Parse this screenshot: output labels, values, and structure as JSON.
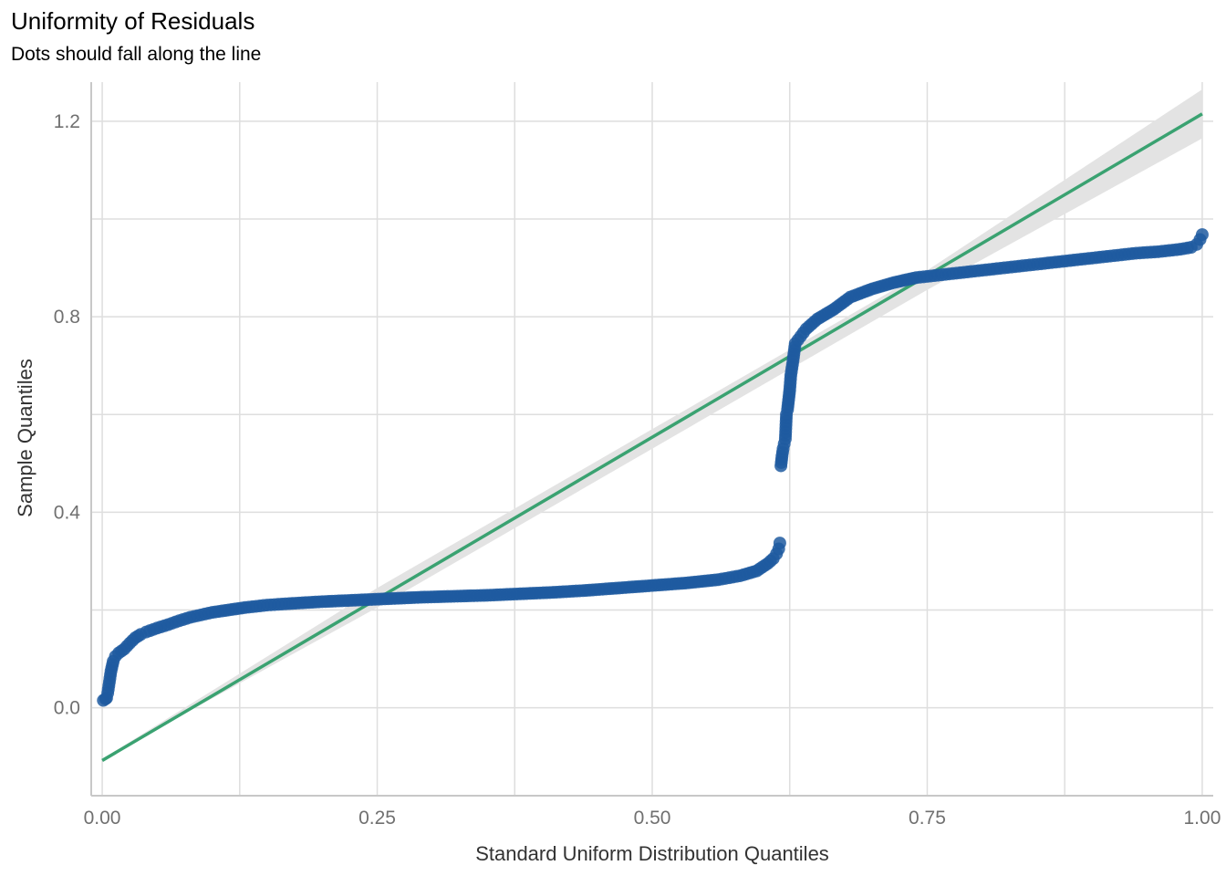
{
  "chart_data": {
    "type": "scatter",
    "title": "Uniformity of Residuals",
    "subtitle": "Dots should fall along the line",
    "xlabel": "Standard Uniform Distribution Quantiles",
    "ylabel": "Sample Quantiles",
    "xlim": [
      -0.01,
      1.01
    ],
    "ylim": [
      -0.18,
      1.28
    ],
    "x_ticks": [
      0.0,
      0.25,
      0.5,
      0.75,
      1.0
    ],
    "x_tick_labels": [
      "0.00",
      "0.25",
      "0.50",
      "0.75",
      "1.00"
    ],
    "y_ticks": [
      0.0,
      0.4,
      0.8,
      1.2
    ],
    "y_tick_labels": [
      "0.0",
      "0.4",
      "0.8",
      "1.2"
    ],
    "grid": true,
    "colors": {
      "points": "#1f5aa0",
      "line": "#3aa271",
      "band": "#e3e3e3",
      "grid": "#dedede",
      "axis_text": "#707070"
    },
    "reference_line": {
      "x": [
        0.0,
        1.0
      ],
      "y": [
        -0.108,
        1.215
      ]
    },
    "confidence_band": {
      "x": [
        0.0,
        0.25,
        0.5,
        0.75,
        1.0
      ],
      "lower": [
        -0.105,
        0.205,
        0.53,
        0.855,
        1.165
      ],
      "upper": [
        -0.105,
        0.245,
        0.57,
        0.895,
        1.265
      ]
    },
    "points": {
      "x": [
        0.001,
        0.003,
        0.004,
        0.005,
        0.006,
        0.007,
        0.008,
        0.01,
        0.012,
        0.015,
        0.02,
        0.025,
        0.03,
        0.035,
        0.04,
        0.05,
        0.06,
        0.07,
        0.08,
        0.09,
        0.1,
        0.115,
        0.13,
        0.15,
        0.17,
        0.2,
        0.23,
        0.26,
        0.29,
        0.32,
        0.35,
        0.38,
        0.41,
        0.44,
        0.47,
        0.5,
        0.53,
        0.56,
        0.58,
        0.595,
        0.605,
        0.61,
        0.613,
        0.615,
        0.616,
        0.617,
        0.618,
        0.619,
        0.62,
        0.621,
        0.622,
        0.623,
        0.624,
        0.625,
        0.626,
        0.627,
        0.628,
        0.63,
        0.635,
        0.64,
        0.65,
        0.665,
        0.68,
        0.7,
        0.72,
        0.74,
        0.76,
        0.78,
        0.8,
        0.82,
        0.84,
        0.86,
        0.88,
        0.9,
        0.92,
        0.94,
        0.96,
        0.98,
        0.99,
        0.995,
        0.998,
        1.0
      ],
      "y": [
        0.015,
        0.018,
        0.02,
        0.03,
        0.045,
        0.06,
        0.075,
        0.095,
        0.105,
        0.112,
        0.12,
        0.132,
        0.143,
        0.15,
        0.155,
        0.163,
        0.17,
        0.178,
        0.185,
        0.19,
        0.195,
        0.2,
        0.205,
        0.21,
        0.213,
        0.217,
        0.22,
        0.223,
        0.226,
        0.228,
        0.23,
        0.233,
        0.236,
        0.24,
        0.245,
        0.25,
        0.255,
        0.262,
        0.27,
        0.28,
        0.295,
        0.305,
        0.315,
        0.325,
        0.337,
        0.495,
        0.515,
        0.53,
        0.54,
        0.55,
        0.6,
        0.61,
        0.63,
        0.65,
        0.68,
        0.695,
        0.71,
        0.745,
        0.76,
        0.775,
        0.795,
        0.815,
        0.84,
        0.857,
        0.87,
        0.88,
        0.885,
        0.89,
        0.895,
        0.9,
        0.905,
        0.91,
        0.915,
        0.92,
        0.925,
        0.93,
        0.933,
        0.938,
        0.942,
        0.948,
        0.958,
        0.968
      ]
    }
  }
}
